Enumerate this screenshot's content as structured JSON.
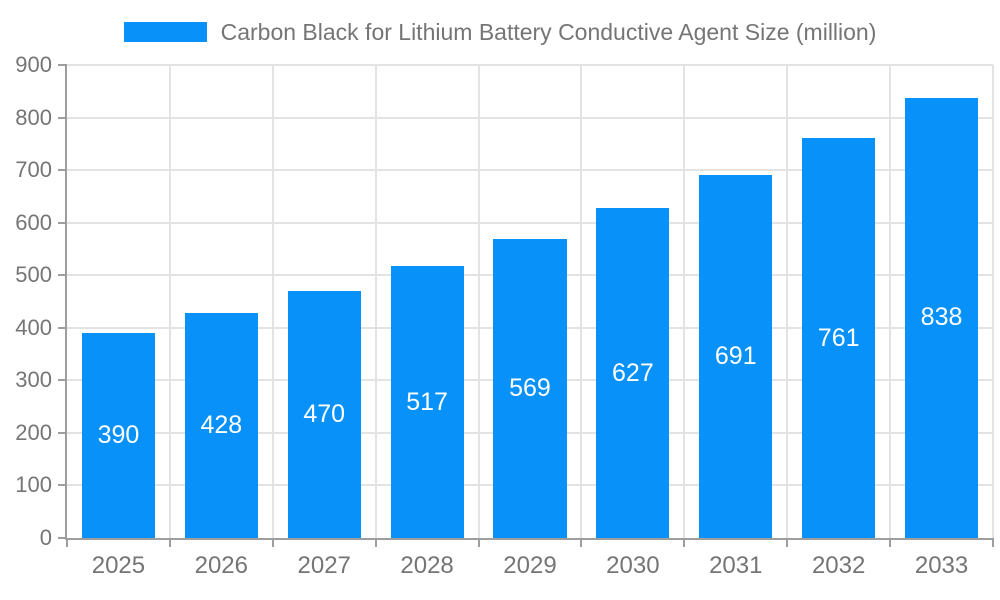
{
  "chart_data": {
    "type": "bar",
    "title": "Carbon Black for Lithium Battery Conductive Agent Size (million)",
    "categories": [
      "2025",
      "2026",
      "2027",
      "2028",
      "2029",
      "2030",
      "2031",
      "2032",
      "2033"
    ],
    "values": [
      390,
      428,
      470,
      517,
      569,
      627,
      691,
      761,
      838
    ],
    "series": [
      {
        "name": "Carbon Black for Lithium Battery Conductive Agent Size (million)",
        "values": [
          390,
          428,
          470,
          517,
          569,
          627,
          691,
          761,
          838
        ]
      }
    ],
    "xlabel": "",
    "ylabel": "",
    "ylim": [
      0,
      900
    ],
    "y_ticks": [
      0,
      100,
      200,
      300,
      400,
      500,
      600,
      700,
      800,
      900
    ],
    "grid": true,
    "legend_position": "top",
    "bar_labels_shown": true,
    "colors": {
      "bar": "#0891F8",
      "bar_value_label": "#ffffff",
      "axis_text": "#757575",
      "axis_line": "#9e9e9e",
      "gridline": "#e3e3e3",
      "background": "#ffffff"
    }
  }
}
